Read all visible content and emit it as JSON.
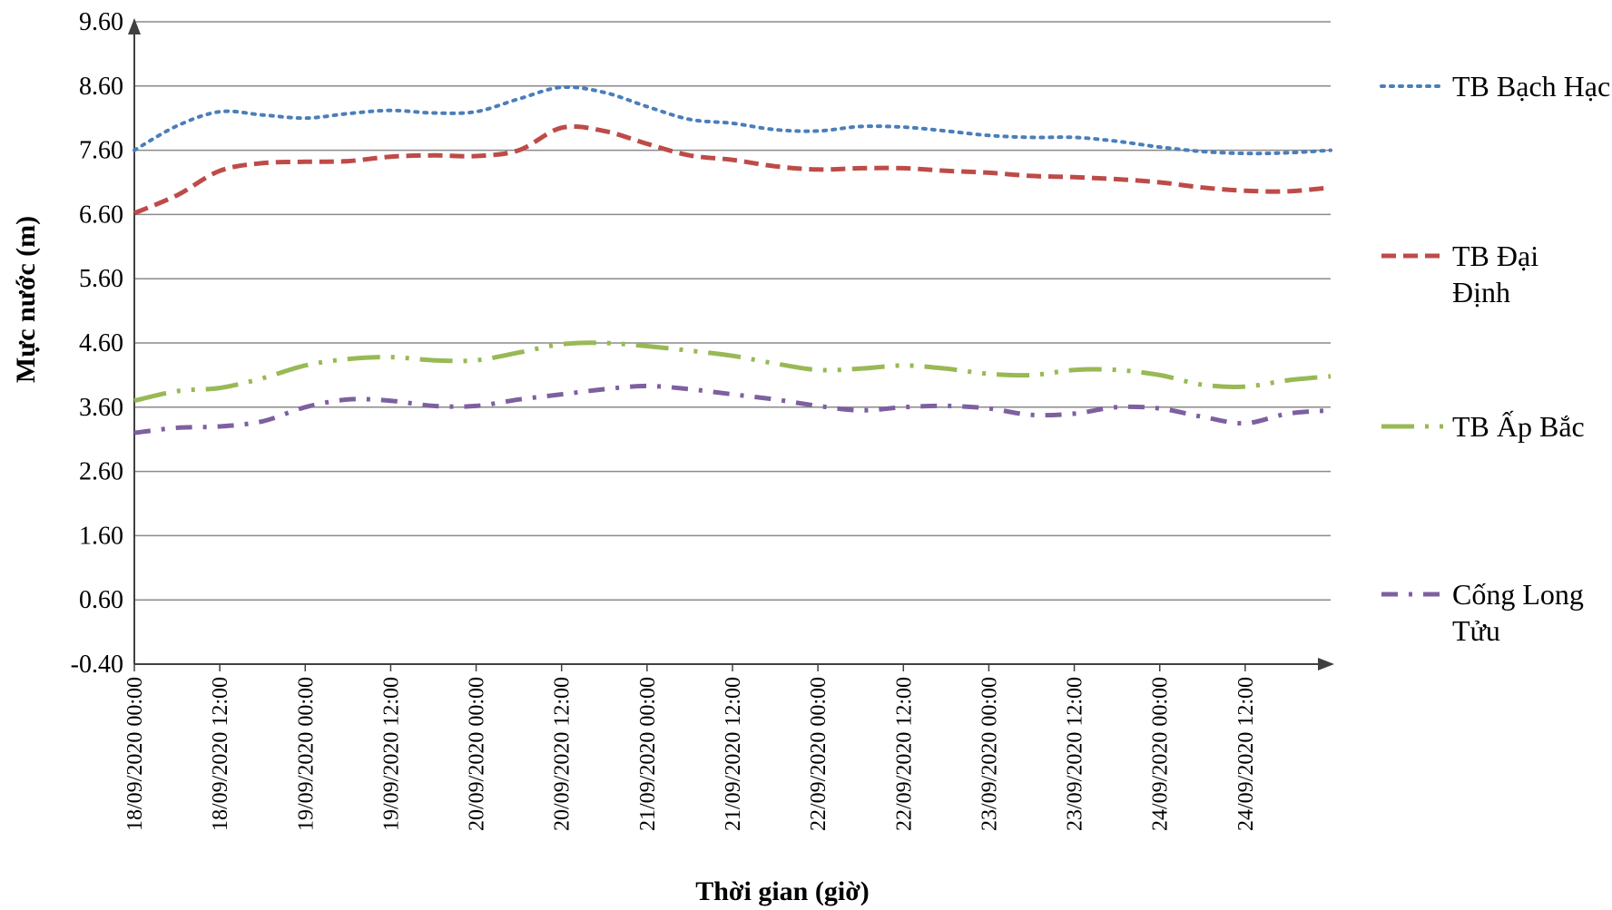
{
  "chart_data": {
    "type": "line",
    "title": "",
    "xlabel": "Thời gian (giờ)",
    "ylabel": "Mực nước (m)",
    "ylim": [
      -0.4,
      9.6
    ],
    "yticks": [
      "9.60",
      "8.60",
      "7.60",
      "6.60",
      "5.60",
      "4.60",
      "3.60",
      "2.60",
      "1.60",
      "0.60",
      "-0.40"
    ],
    "xticks": [
      "18/09/2020 00:00",
      "18/09/2020 12:00",
      "19/09/2020 00:00",
      "19/09/2020 12:00",
      "20/09/2020 00:00",
      "20/09/2020 12:00",
      "21/09/2020 00:00",
      "21/09/2020 12:00",
      "22/09/2020 00:00",
      "22/09/2020 12:00",
      "23/09/2020 00:00",
      "23/09/2020 12:00",
      "24/09/2020 00:00",
      "24/09/2020 12:00"
    ],
    "x_hours": [
      0,
      6,
      12,
      18,
      24,
      30,
      36,
      42,
      48,
      54,
      60,
      66,
      72,
      78,
      84,
      90,
      96,
      102,
      108,
      114,
      120,
      126,
      132,
      138,
      144,
      150,
      156,
      162,
      168
    ],
    "grid": "horizontal",
    "legend_position": "right",
    "series": [
      {
        "name": "TB Bạch Hạc",
        "color": "#4a7ebb",
        "style": "dotted",
        "values": [
          7.6,
          7.98,
          8.2,
          8.15,
          8.1,
          8.17,
          8.22,
          8.18,
          8.2,
          8.4,
          8.58,
          8.5,
          8.28,
          8.08,
          8.02,
          7.92,
          7.9,
          7.97,
          7.96,
          7.9,
          7.83,
          7.8,
          7.8,
          7.74,
          7.65,
          7.58,
          7.55,
          7.56,
          7.6
        ]
      },
      {
        "name": "TB Đại\nĐịnh",
        "color": "#be4b48",
        "style": "dashed",
        "values": [
          6.62,
          6.9,
          7.28,
          7.4,
          7.42,
          7.43,
          7.5,
          7.52,
          7.51,
          7.6,
          7.95,
          7.9,
          7.7,
          7.52,
          7.45,
          7.35,
          7.3,
          7.32,
          7.32,
          7.28,
          7.25,
          7.2,
          7.18,
          7.15,
          7.1,
          7.02,
          6.97,
          6.96,
          7.02
        ]
      },
      {
        "name": "TB Ấp Bắc",
        "color": "#98b954",
        "style": "longdash-dot",
        "values": [
          3.7,
          3.85,
          3.9,
          4.05,
          4.25,
          4.35,
          4.38,
          4.33,
          4.33,
          4.45,
          4.58,
          4.6,
          4.55,
          4.48,
          4.4,
          4.28,
          4.18,
          4.2,
          4.25,
          4.2,
          4.12,
          4.1,
          4.18,
          4.18,
          4.1,
          3.95,
          3.92,
          4.02,
          4.08
        ]
      },
      {
        "name": "Cống Long\nTửu",
        "color": "#7d60a0",
        "style": "dash-dot",
        "values": [
          3.2,
          3.28,
          3.3,
          3.38,
          3.6,
          3.72,
          3.7,
          3.62,
          3.62,
          3.72,
          3.8,
          3.88,
          3.93,
          3.88,
          3.8,
          3.72,
          3.62,
          3.55,
          3.6,
          3.62,
          3.58,
          3.48,
          3.5,
          3.6,
          3.58,
          3.45,
          3.35,
          3.5,
          3.55
        ]
      }
    ]
  }
}
